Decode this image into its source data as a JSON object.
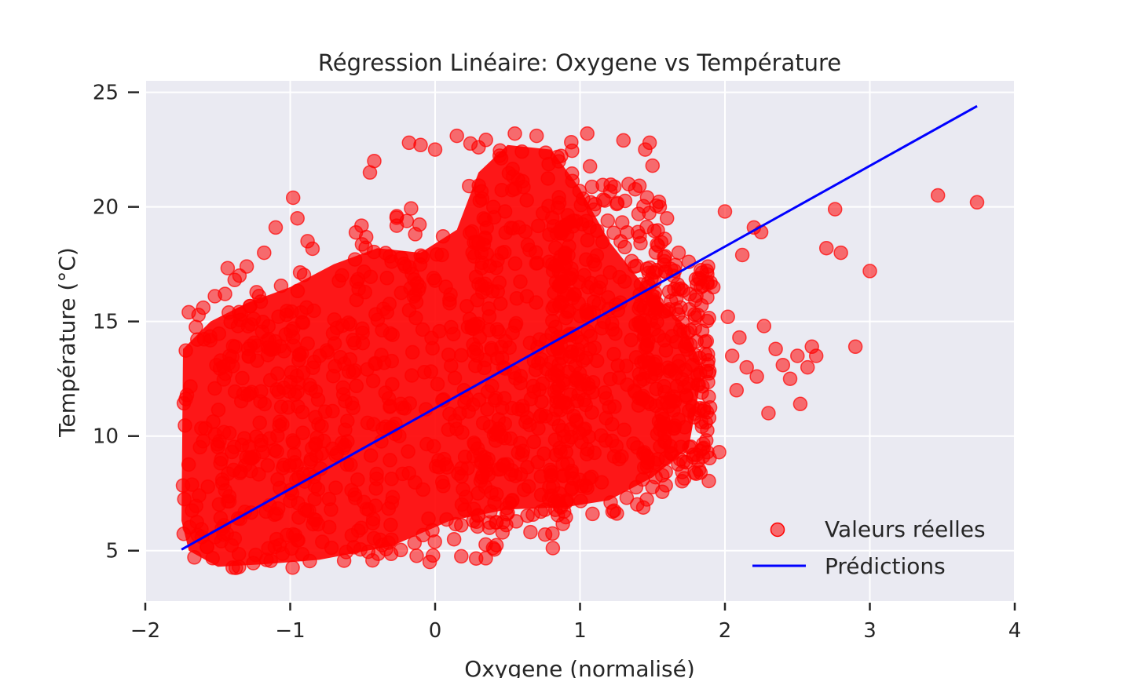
{
  "chart_data": {
    "type": "scatter",
    "title": "Régression Linéaire: Oxygene vs Température",
    "xlabel": "Oxygene (normalisé)",
    "ylabel": "Température (°C)",
    "xlim": [
      -2,
      4
    ],
    "ylim": [
      2.8,
      25.5
    ],
    "xticks": [
      -2,
      -1,
      0,
      1,
      2,
      3,
      4
    ],
    "xtick_labels": [
      "−2",
      "−1",
      "0",
      "1",
      "2",
      "3",
      "4"
    ],
    "yticks": [
      5,
      10,
      15,
      20,
      25
    ],
    "ytick_labels": [
      "5",
      "10",
      "15",
      "20",
      "25"
    ],
    "grid": true,
    "legend_position": "bottom-right",
    "colors": {
      "scatter": "#ff0000",
      "line": "#0000ff",
      "background": "#eaeaf2",
      "grid": "#ffffff"
    },
    "series": [
      {
        "name": "Valeurs réelles",
        "kind": "scatter",
        "point_clouds": [
          {
            "x_range": [
              -1.75,
              -0.6
            ],
            "y_range": [
              4.2,
              15.5
            ]
          },
          {
            "x_range": [
              -1.5,
              0.5
            ],
            "y_range": [
              4.5,
              18.5
            ]
          },
          {
            "x_range": [
              -0.6,
              1.0
            ],
            "y_range": [
              5.0,
              20.0
            ]
          },
          {
            "x_range": [
              0.2,
              1.1
            ],
            "y_range": [
              6.5,
              23.0
            ]
          },
          {
            "x_range": [
              0.8,
              1.6
            ],
            "y_range": [
              6.5,
              21.0
            ]
          },
          {
            "x_range": [
              1.4,
              1.9
            ],
            "y_range": [
              8.0,
              17.5
            ]
          }
        ],
        "x": [
          -1.6,
          -1.52,
          -1.45,
          -1.35,
          -1.3,
          -1.18,
          -1.1,
          -0.98,
          -0.95,
          -0.88,
          -0.45,
          -0.42,
          -0.18,
          -0.1,
          0.0,
          0.15,
          0.3,
          0.55,
          0.7,
          1.05,
          1.3,
          1.45,
          1.48,
          1.5,
          1.55,
          1.6,
          1.68,
          1.75,
          1.82,
          1.9,
          1.92,
          1.96,
          2.0,
          2.02,
          2.05,
          2.08,
          2.1,
          2.12,
          2.15,
          2.2,
          2.22,
          2.25,
          2.27,
          2.3,
          2.35,
          2.4,
          2.45,
          2.5,
          2.52,
          2.57,
          2.6,
          2.63,
          2.7,
          2.76,
          2.8,
          2.9,
          3.0,
          3.47,
          3.74
        ],
        "y": [
          15.6,
          16.1,
          16.2,
          17.0,
          17.4,
          18.0,
          19.1,
          20.4,
          19.5,
          18.5,
          21.5,
          22.0,
          22.8,
          22.7,
          22.5,
          23.1,
          22.6,
          23.2,
          23.1,
          23.2,
          22.9,
          22.5,
          22.8,
          21.8,
          20.0,
          19.5,
          18.0,
          17.6,
          16.9,
          16.7,
          16.5,
          9.3,
          19.8,
          15.2,
          13.5,
          12.0,
          14.3,
          17.9,
          13.0,
          19.1,
          12.6,
          18.9,
          14.8,
          11.0,
          13.8,
          13.1,
          12.5,
          13.5,
          11.4,
          13.0,
          13.9,
          13.5,
          18.2,
          19.9,
          18.0,
          13.9,
          17.2,
          20.5,
          20.2
        ]
      },
      {
        "name": "Prédictions",
        "kind": "line",
        "x": [
          -1.75,
          3.74
        ],
        "y": [
          5.05,
          24.4
        ]
      }
    ]
  }
}
